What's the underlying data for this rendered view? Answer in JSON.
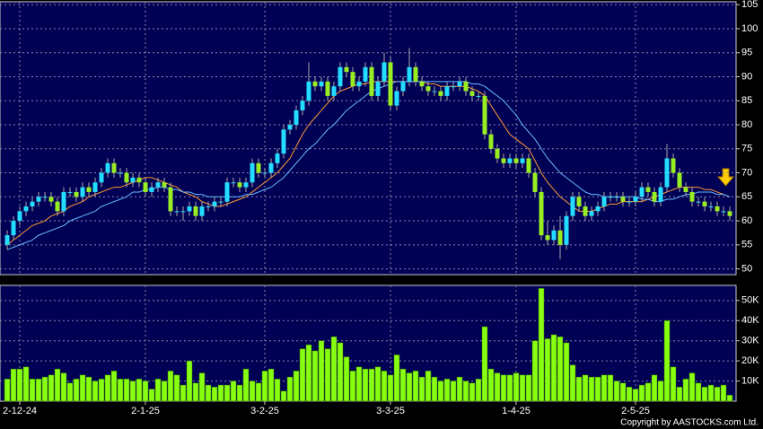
{
  "chart_data": [
    {
      "type": "candlestick",
      "categories": [
        null,
        null,
        "2-12-24",
        null,
        null,
        null,
        null,
        null,
        null,
        null,
        null,
        null,
        null,
        null,
        null,
        null,
        null,
        null,
        null,
        null,
        null,
        null,
        "2-1-25",
        null,
        null,
        null,
        null,
        null,
        null,
        null,
        null,
        null,
        null,
        null,
        null,
        null,
        null,
        null,
        null,
        null,
        null,
        "3-2-25",
        null,
        null,
        null,
        null,
        null,
        null,
        null,
        null,
        null,
        null,
        null,
        null,
        null,
        null,
        null,
        null,
        null,
        null,
        null,
        "3-3-25",
        null,
        null,
        null,
        null,
        null,
        null,
        null,
        null,
        null,
        null,
        null,
        null,
        null,
        null,
        null,
        null,
        null,
        null,
        null,
        "1-4-25",
        null,
        null,
        null,
        null,
        null,
        null,
        null,
        null,
        null,
        null,
        null,
        null,
        null,
        null,
        null,
        null,
        null,
        null,
        "2-5-25",
        null,
        null,
        null,
        null,
        null,
        null,
        null,
        null,
        null,
        null,
        null,
        null,
        null,
        null,
        null
      ],
      "open": [
        55,
        57,
        60,
        62,
        63,
        64,
        65,
        65,
        64,
        62,
        66,
        66,
        65,
        67,
        66,
        68,
        70,
        72,
        70,
        70,
        68,
        69,
        68,
        66,
        67,
        68,
        67,
        62,
        62,
        62,
        63,
        61,
        63,
        63,
        64,
        64,
        68,
        68,
        67,
        68,
        72,
        70,
        70,
        72,
        74,
        79,
        80,
        83,
        85,
        89,
        88,
        89,
        86,
        88,
        92,
        91,
        88,
        89,
        92,
        86,
        89,
        93,
        84,
        87,
        89,
        92,
        89,
        88,
        87,
        87,
        86,
        88,
        88,
        89,
        87,
        86,
        86,
        78,
        75,
        73,
        72,
        73,
        72,
        73,
        70,
        66,
        57,
        56,
        58,
        55,
        61,
        65,
        63,
        61,
        62,
        63,
        65,
        65,
        65,
        64,
        64,
        65,
        67,
        66,
        64,
        67,
        73,
        70,
        67,
        66,
        64,
        64,
        63,
        63,
        62,
        62
      ],
      "high": [
        58,
        61,
        63,
        64,
        65,
        66,
        66,
        66,
        65,
        67,
        67,
        67,
        68,
        68,
        69,
        71,
        73,
        73,
        71,
        71,
        70,
        70,
        69,
        68,
        69,
        69,
        68,
        63,
        63,
        64,
        64,
        64,
        64,
        65,
        65,
        69,
        69,
        69,
        69,
        73,
        73,
        71,
        73,
        75,
        80,
        81,
        84,
        86,
        93,
        90,
        90,
        90,
        89,
        93,
        93,
        92,
        90,
        93,
        93,
        90,
        95,
        94,
        88,
        90,
        96,
        93,
        90,
        89,
        88,
        88,
        89,
        89,
        90,
        90,
        88,
        87,
        87,
        79,
        76,
        74,
        74,
        74,
        74,
        74,
        71,
        67,
        60,
        59,
        61,
        62,
        66,
        66,
        64,
        63,
        64,
        66,
        66,
        66,
        66,
        65,
        66,
        68,
        68,
        67,
        68,
        76,
        74,
        71,
        68,
        67,
        65,
        65,
        64,
        64,
        63,
        63
      ],
      "low": [
        54,
        56,
        59,
        61,
        62,
        63,
        64,
        63,
        61,
        61,
        65,
        64,
        64,
        65,
        65,
        67,
        69,
        69,
        69,
        67,
        67,
        67,
        65,
        65,
        66,
        66,
        61,
        61,
        60,
        61,
        60,
        60,
        62,
        62,
        63,
        63,
        67,
        66,
        66,
        67,
        69,
        69,
        69,
        71,
        73,
        78,
        79,
        82,
        84,
        87,
        87,
        85,
        85,
        87,
        90,
        87,
        87,
        88,
        85,
        85,
        88,
        83,
        83,
        86,
        88,
        88,
        87,
        86,
        86,
        85,
        85,
        87,
        87,
        86,
        85,
        85,
        77,
        74,
        72,
        71,
        71,
        71,
        71,
        69,
        65,
        56,
        55,
        55,
        52,
        54,
        60,
        62,
        60,
        60,
        61,
        62,
        64,
        64,
        63,
        63,
        63,
        64,
        65,
        63,
        63,
        66,
        69,
        66,
        65,
        63,
        63,
        62,
        62,
        61,
        61,
        60
      ],
      "close": [
        57,
        60,
        62,
        63,
        64,
        65,
        65,
        64,
        62,
        66,
        66,
        65,
        67,
        66,
        68,
        70,
        72,
        70,
        70,
        68,
        69,
        68,
        66,
        67,
        68,
        67,
        62,
        62,
        62,
        63,
        61,
        63,
        63,
        64,
        64,
        68,
        68,
        67,
        68,
        72,
        70,
        70,
        72,
        74,
        79,
        80,
        83,
        85,
        89,
        88,
        89,
        86,
        88,
        92,
        91,
        88,
        89,
        92,
        86,
        89,
        93,
        84,
        87,
        89,
        92,
        89,
        88,
        87,
        87,
        86,
        88,
        88,
        89,
        87,
        86,
        86,
        78,
        75,
        73,
        72,
        73,
        72,
        73,
        70,
        66,
        57,
        56,
        58,
        55,
        61,
        65,
        63,
        61,
        62,
        63,
        65,
        65,
        65,
        64,
        64,
        65,
        67,
        66,
        64,
        67,
        73,
        70,
        67,
        66,
        64,
        64,
        63,
        63,
        62,
        62,
        61
      ],
      "up_color": "#22ddff",
      "down_color": "#99ee22",
      "lines": [
        {
          "color": "#ff9933",
          "values": [
            55,
            56,
            57,
            58,
            59,
            59.5,
            60,
            61,
            61.5,
            62,
            63,
            63.5,
            64,
            65,
            65.5,
            66,
            66.5,
            67,
            67,
            67.5,
            68,
            68.5,
            69,
            69,
            68.5,
            68,
            67.5,
            67,
            66,
            65.5,
            65,
            64,
            63.5,
            63,
            63,
            63.5,
            64,
            64.5,
            65,
            66,
            67,
            68,
            69,
            70,
            71.5,
            73,
            75.5,
            78,
            80,
            81.5,
            83,
            84.5,
            86,
            87,
            87.5,
            88,
            88.5,
            88.5,
            89,
            89,
            89,
            89,
            89,
            89,
            89,
            89,
            89,
            88.5,
            88.5,
            88,
            88,
            88,
            88,
            88,
            87.5,
            87,
            86,
            84,
            82,
            80,
            78,
            77,
            76,
            75,
            72.5,
            70,
            68,
            66.5,
            65,
            64,
            63,
            62,
            62,
            62,
            62.5,
            63,
            63.5,
            63.5,
            64,
            64,
            64,
            64,
            64.5,
            65,
            65.5,
            66,
            66.5,
            67,
            67,
            67,
            67,
            66.5,
            66.5,
            66,
            65.5,
            65
          ]
        },
        {
          "color": "#66bbff",
          "values": [
            54,
            54.5,
            55,
            55.5,
            56,
            57,
            57.5,
            58,
            58.5,
            59,
            60,
            60.5,
            61,
            61.5,
            62,
            63,
            63.5,
            64,
            64.5,
            65,
            66,
            66,
            66.5,
            66.5,
            67,
            67,
            66.5,
            66.5,
            66,
            66,
            65.5,
            65.5,
            65,
            65,
            65,
            65,
            65,
            65,
            65.5,
            65.5,
            66,
            66.5,
            67,
            68,
            69,
            70.5,
            72,
            73.5,
            75,
            76,
            77.5,
            79,
            80,
            81.5,
            83,
            84,
            85,
            86,
            87,
            87.5,
            88,
            88.5,
            89,
            89,
            89,
            89,
            89,
            89,
            89,
            89,
            89,
            89,
            89,
            89,
            88.5,
            88.5,
            88,
            87,
            86,
            85,
            83.5,
            82,
            80,
            78.5,
            77,
            75,
            73,
            71.5,
            70,
            69,
            68,
            67,
            66,
            65.5,
            65.5,
            65,
            65,
            65,
            65,
            65,
            65,
            64.5,
            64.5,
            64,
            64,
            64.5,
            64.5,
            65,
            65.5,
            65.5,
            66,
            66,
            66,
            65.5,
            65.5,
            65
          ]
        }
      ],
      "ylim": [
        48.8,
        105.6
      ],
      "yticks": [
        50,
        55,
        60,
        65,
        70,
        75,
        80,
        85,
        90,
        95,
        100,
        105
      ],
      "grid": true
    },
    {
      "type": "bar",
      "color": "#88ff11",
      "values": [
        11000,
        16000,
        16000,
        17000,
        11000,
        11000,
        12000,
        13000,
        16000,
        14000,
        9000,
        11000,
        13000,
        12000,
        10000,
        11000,
        13000,
        15000,
        11000,
        11000,
        10000,
        11000,
        10000,
        6000,
        11000,
        10000,
        15000,
        13000,
        8000,
        20000,
        9000,
        14000,
        8000,
        7000,
        8000,
        8000,
        10000,
        8000,
        16000,
        10000,
        9000,
        15000,
        16000,
        11000,
        5000,
        12000,
        15000,
        26000,
        28000,
        25000,
        30000,
        26000,
        32000,
        29000,
        22000,
        15000,
        17000,
        16000,
        16000,
        17000,
        15000,
        13000,
        23000,
        16000,
        14000,
        15000,
        12000,
        15000,
        12000,
        10000,
        11000,
        10000,
        12000,
        10000,
        9000,
        11000,
        37000,
        16000,
        14000,
        13000,
        13000,
        14000,
        13000,
        13000,
        30000,
        56000,
        31000,
        33000,
        32000,
        29000,
        18000,
        12000,
        13000,
        12000,
        12000,
        13000,
        13000,
        10000,
        9000,
        7000,
        6000,
        8000,
        9000,
        13000,
        10000,
        40000,
        17000,
        7000,
        11000,
        14000,
        9000,
        7000,
        8000,
        7000,
        8000,
        3000
      ],
      "ylim": [
        0,
        57500
      ],
      "yticks": [
        {
          "value": 10000,
          "label": "10K"
        },
        {
          "value": 20000,
          "label": "20K"
        },
        {
          "value": 30000,
          "label": "30K"
        },
        {
          "value": 40000,
          "label": "40K"
        },
        {
          "value": 50000,
          "label": "50K"
        }
      ],
      "grid": true
    }
  ],
  "copyright": "Copyright by AASTOCKS.com Ltd."
}
